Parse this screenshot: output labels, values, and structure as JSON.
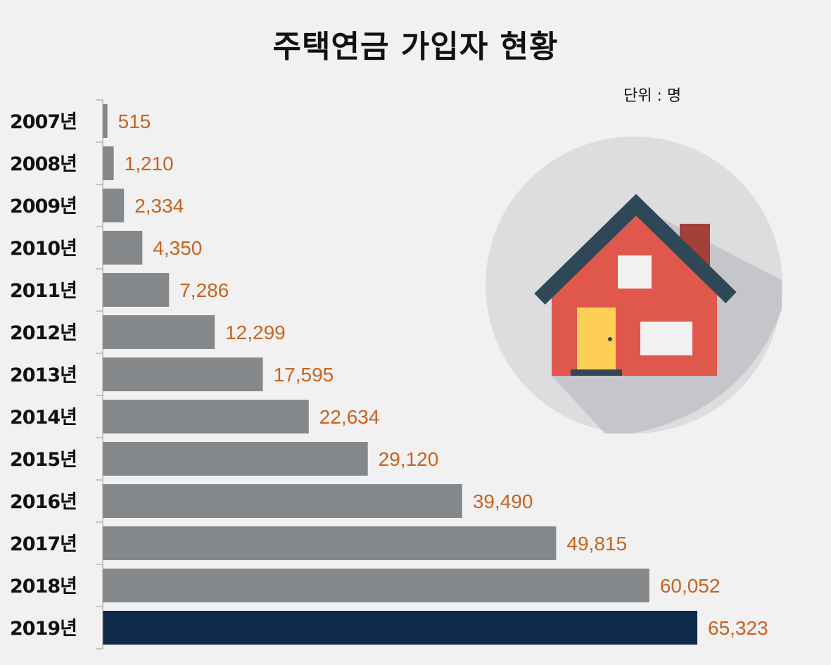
{
  "chart_data": {
    "type": "bar",
    "orientation": "horizontal",
    "title": "주택연금 가입자 현황",
    "unit_note": "단위 : 명",
    "categories": [
      "2007년",
      "2008년",
      "2009년",
      "2010년",
      "2011년",
      "2012년",
      "2013년",
      "2014년",
      "2015년",
      "2016년",
      "2017년",
      "2018년",
      "2019년"
    ],
    "values": [
      515,
      1210,
      2334,
      4350,
      7286,
      12299,
      17595,
      22634,
      29120,
      39490,
      49815,
      60052,
      65323
    ],
    "value_labels": [
      "515",
      "1,210",
      "2,334",
      "4,350",
      "7,286",
      "12,299",
      "17,595",
      "22,634",
      "29,120",
      "39,490",
      "49,815",
      "60,052",
      "65,323"
    ],
    "xlim": [
      0,
      65323
    ],
    "grid": false,
    "legend": "none",
    "colors": {
      "bar": "#85888b",
      "highlight_bar": "#0e2a4a",
      "value_label": "#c8631f",
      "axis": "#9a9a9a"
    },
    "highlight_index": 12
  },
  "illustration": {
    "icon": "house-icon",
    "colors": {
      "circle": "#dddcdf",
      "shadow": "#c6c5c9",
      "roof": "#2f4858",
      "wall": "#e0574c",
      "chimney": "#a3403a",
      "door": "#fdd055",
      "window": "#f1f1f1",
      "step": "#2f4858"
    }
  }
}
